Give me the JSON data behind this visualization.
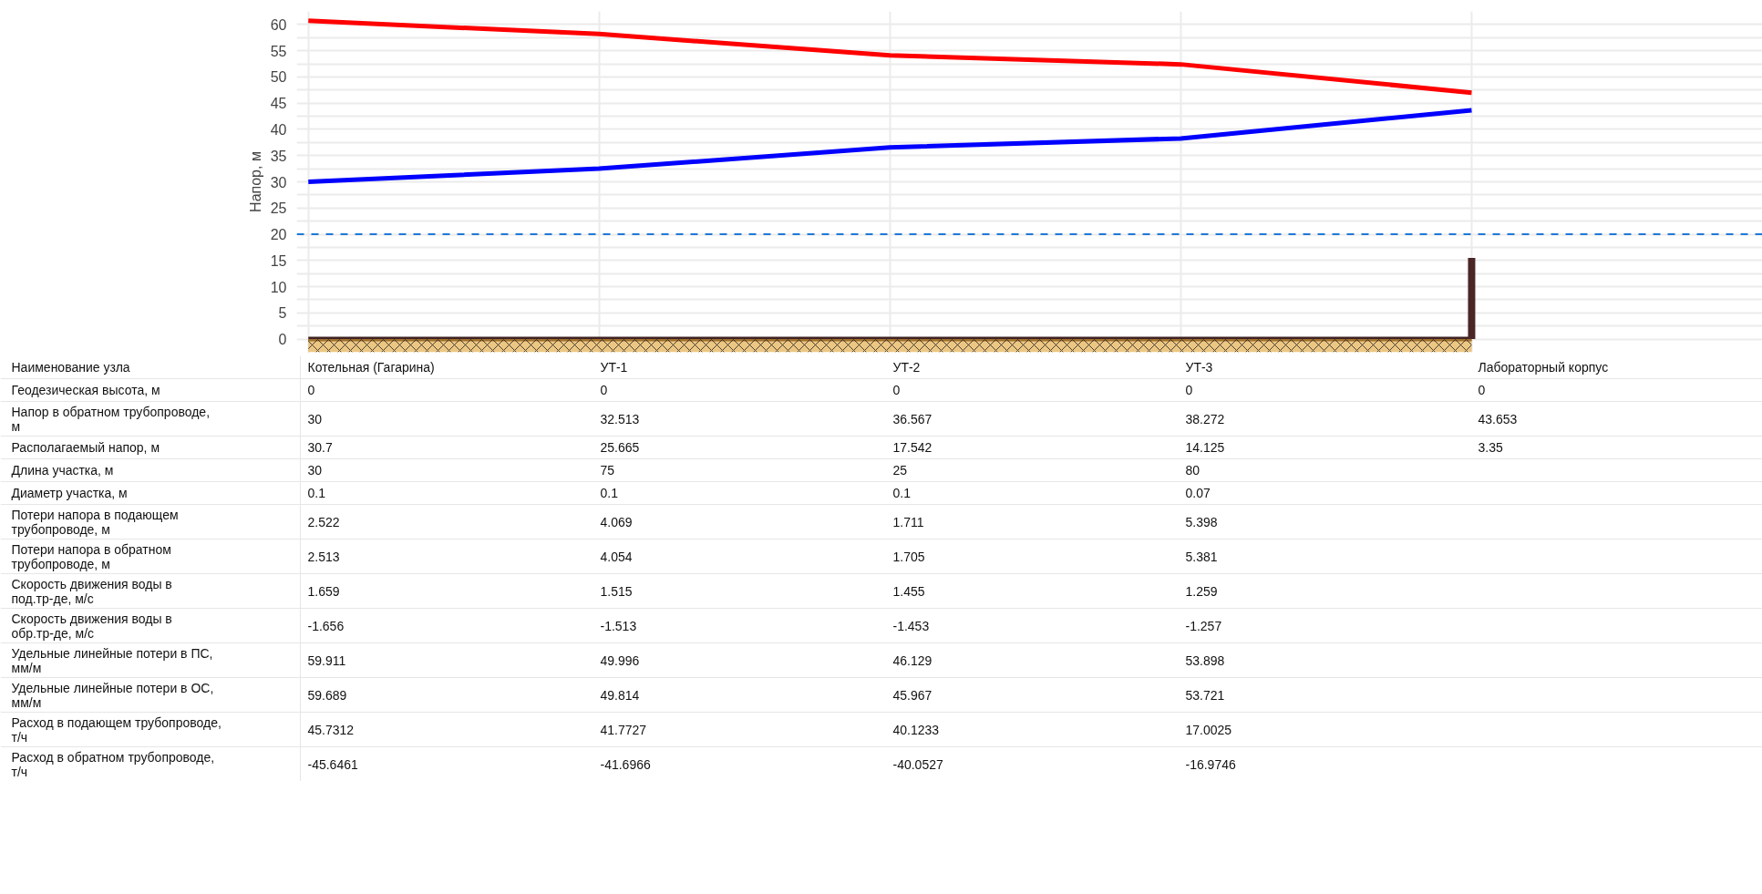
{
  "chart_data": [
    {
      "type": "line",
      "ylabel": "Напор, м",
      "categories": [
        null,
        null,
        null,
        null,
        null
      ],
      "tick_labels": "y",
      "grid": true,
      "ylim": [
        -2.5,
        62.5
      ],
      "yticks": [
        0,
        {
          "value": 2.5,
          "label": null
        },
        5,
        {
          "value": 7.5,
          "label": null
        },
        10,
        {
          "value": 12.5,
          "label": null
        },
        15,
        {
          "value": 17.5,
          "label": null
        },
        20,
        {
          "value": 22.5,
          "label": null
        },
        25,
        {
          "value": 27.5,
          "label": null
        },
        30,
        {
          "value": 32.5,
          "label": null
        },
        35,
        {
          "value": 37.5,
          "label": null
        },
        40,
        {
          "value": 42.5,
          "label": null
        },
        45,
        {
          "value": 47.5,
          "label": null
        },
        50,
        {
          "value": 52.5,
          "label": null
        },
        55,
        {
          "value": 57.5,
          "label": null
        },
        60
      ],
      "series": [
        {
          "type": "line",
          "color": "#ff0000",
          "values": [
            60.7,
            58.178,
            54.109,
            52.397,
            47.003
          ]
        },
        {
          "type": "line",
          "color": "#0000ff",
          "values": [
            30,
            32.513,
            36.567,
            38.272,
            43.653
          ]
        },
        {
          "type": "line",
          "color": "#3f2323",
          "values": [
            0,
            0,
            0,
            0,
            0
          ]
        },
        {
          "type": "bar",
          "color": "#4a2626",
          "values": [
            null,
            null,
            null,
            null,
            15.5
          ]
        }
      ],
      "ref_lines": [
        {
          "axis": "y",
          "value": 20,
          "label": null,
          "color": "#1e78d7",
          "line_style": "dashed"
        }
      ],
      "bands": [
        {
          "axis": "y",
          "from": -2.5,
          "to": 0,
          "label": null,
          "color": "#e0a030"
        }
      ]
    },
    {
      "type": "other",
      "data_labels": true,
      "xlabel": "Наименование узла",
      "categories": [
        "Котельная (Гагарина)",
        "УТ-1",
        "УТ-2",
        "УТ-3",
        "Лабораторный корпус"
      ],
      "series": [
        {
          "name": "Геодезическая высота, м",
          "values": [
            0,
            0,
            0,
            0,
            0
          ]
        },
        {
          "name": "Напор в обратном трубопроводе, м",
          "values": [
            30,
            32.513,
            36.567,
            38.272,
            43.653
          ]
        },
        {
          "name": "Располагаемый напор, м",
          "values": [
            30.7,
            25.665,
            17.542,
            14.125,
            3.35
          ]
        },
        {
          "name": "Длина участка, м",
          "values": [
            30,
            75,
            25,
            80,
            null
          ]
        },
        {
          "name": "Диаметр участка, м",
          "values": [
            0.1,
            0.1,
            0.1,
            0.07,
            null
          ]
        },
        {
          "name": "Потери напора в подающем трубопроводе, м",
          "values": [
            2.522,
            4.069,
            1.711,
            5.398,
            null
          ]
        },
        {
          "name": "Потери напора в обратном трубопроводе, м",
          "values": [
            2.513,
            4.054,
            1.705,
            5.381,
            null
          ]
        },
        {
          "name": "Скорость движения воды в под.тр-де, м/с",
          "values": [
            1.659,
            1.515,
            1.455,
            1.259,
            null
          ]
        },
        {
          "name": "Скорость движения воды в обр.тр-де, м/с",
          "values": [
            -1.656,
            -1.513,
            -1.453,
            -1.257,
            null
          ]
        },
        {
          "name": "Удельные линейные потери в ПС, мм/м",
          "values": [
            59.911,
            49.996,
            46.129,
            53.898,
            null
          ]
        },
        {
          "name": "Удельные линейные потери в ОС, мм/м",
          "values": [
            59.689,
            49.814,
            45.967,
            53.721,
            null
          ]
        },
        {
          "name": "Расход в подающем трубопроводе, т/ч",
          "values": [
            45.7312,
            41.7727,
            40.1233,
            17.0025,
            null
          ]
        },
        {
          "name": "Расход в обратном трубопроводе, т/ч",
          "values": [
            -45.6461,
            -41.6966,
            -40.0527,
            -16.9746,
            null
          ]
        }
      ]
    }
  ]
}
